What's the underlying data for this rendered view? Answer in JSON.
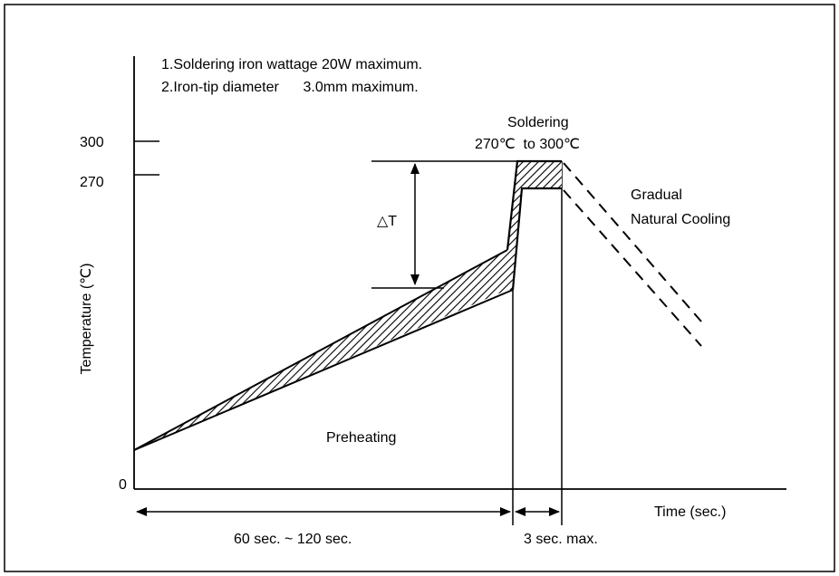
{
  "notes": {
    "line1": "1.Soldering iron wattage 20W maximum.",
    "line2": "2.Iron-tip diameter      3.0mm maximum."
  },
  "axes": {
    "ylabel": "Temperature (℃)",
    "xlabel": "Time (sec.)",
    "tick_300": "300",
    "tick_270": "270",
    "origin": "0"
  },
  "labels": {
    "soldering": "Soldering",
    "soldering_range": "270℃  to 300℃",
    "cooling_line1": "Gradual",
    "cooling_line2": "Natural Cooling",
    "delta_t": "△T",
    "preheating": "Preheating",
    "preheat_duration": "60 sec. ~ 120 sec.",
    "solder_duration": "3 sec. max."
  }
}
